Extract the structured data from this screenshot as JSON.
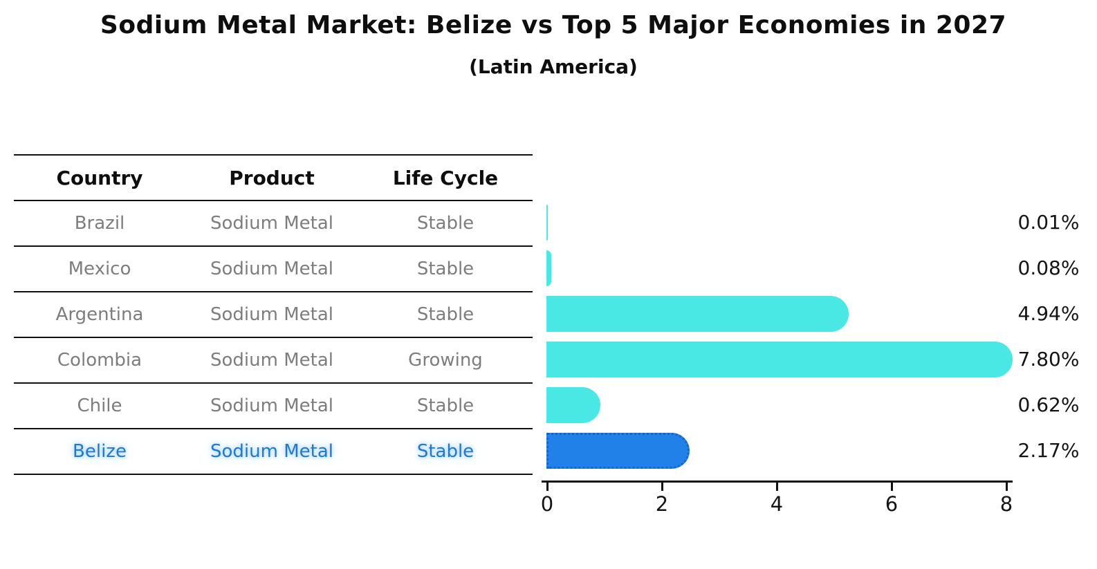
{
  "chart_data": {
    "type": "bar",
    "orientation": "horizontal",
    "title": "Sodium Metal Market: Belize vs Top 5 Major Economies in 2027",
    "subtitle": "(Latin America)",
    "categories": [
      "Brazil",
      "Mexico",
      "Argentina",
      "Colombia",
      "Chile",
      "Belize"
    ],
    "values": [
      0.01,
      0.08,
      4.94,
      7.8,
      0.62,
      2.17
    ],
    "value_labels": [
      "0.01%",
      "0.08%",
      "4.94%",
      "7.80%",
      "0.62%",
      "2.17%"
    ],
    "highlight_index": 5,
    "xlabel": "",
    "ylabel": "",
    "xlim": [
      0,
      8
    ],
    "x_ticks": [
      "0",
      "2",
      "4",
      "6",
      "8"
    ],
    "grid": "off",
    "legend": "none",
    "bar_color": "#4ae8e4",
    "highlight_bar_color": "#2181e8",
    "highlight_border_color": "#1563cf",
    "highlight_text_color": "#2478cc"
  },
  "table": {
    "headers": {
      "country": "Country",
      "product": "Product",
      "life_cycle": "Life Cycle"
    },
    "rows": [
      {
        "country": "Brazil",
        "product": "Sodium Metal",
        "life_cycle": "Stable"
      },
      {
        "country": "Mexico",
        "product": "Sodium Metal",
        "life_cycle": "Stable"
      },
      {
        "country": "Argentina",
        "product": "Sodium Metal",
        "life_cycle": "Stable"
      },
      {
        "country": "Colombia",
        "product": "Sodium Metal",
        "life_cycle": "Growing"
      },
      {
        "country": "Chile",
        "product": "Sodium Metal",
        "life_cycle": "Stable"
      },
      {
        "country": "Belize",
        "product": "Sodium Metal",
        "life_cycle": "Stable"
      }
    ]
  }
}
